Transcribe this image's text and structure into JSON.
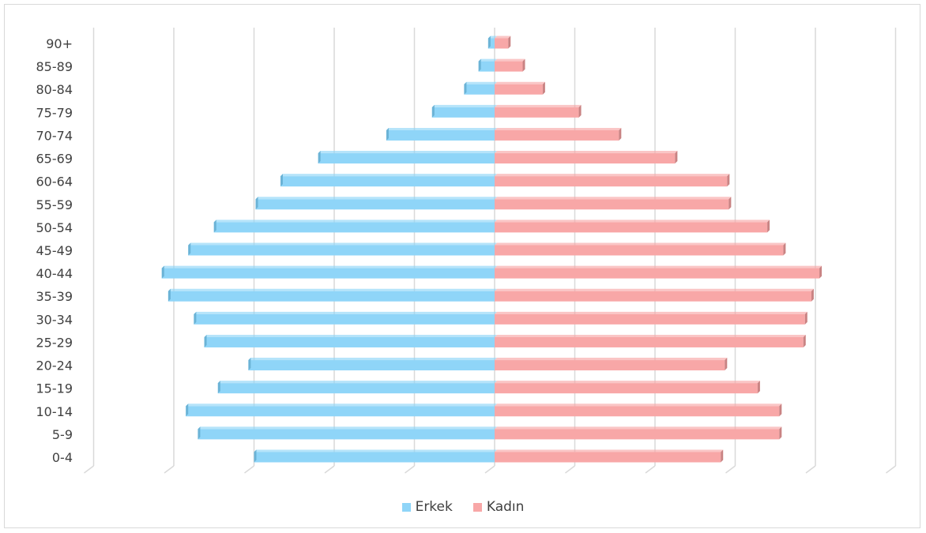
{
  "chart_data": {
    "type": "bar",
    "orientation": "horizontal",
    "subtype": "population-pyramid",
    "title": "",
    "xlabel": "",
    "ylabel": "",
    "categories": [
      "0-4",
      "5-9",
      "10-14",
      "15-19",
      "20-24",
      "25-29",
      "30-34",
      "35-39",
      "40-44",
      "45-49",
      "50-54",
      "55-59",
      "60-64",
      "65-69",
      "70-74",
      "75-79",
      "80-84",
      "85-89",
      "90+"
    ],
    "series": [
      {
        "name": "Erkek",
        "color": "#8fd5f8",
        "values": [
          -3.0,
          -3.7,
          -3.85,
          -3.45,
          -3.07,
          -3.62,
          -3.75,
          -4.07,
          -4.15,
          -3.82,
          -3.5,
          -2.98,
          -2.67,
          -2.2,
          -1.35,
          -0.78,
          -0.38,
          -0.2,
          -0.08
        ]
      },
      {
        "name": "Kadın",
        "color": "#f8a7a7",
        "values": [
          2.82,
          3.55,
          3.55,
          3.28,
          2.87,
          3.85,
          3.87,
          3.95,
          4.05,
          3.6,
          3.4,
          2.92,
          2.9,
          2.25,
          1.55,
          1.05,
          0.6,
          0.35,
          0.17
        ]
      }
    ],
    "xlim": [
      -5,
      5
    ],
    "grid": true,
    "legend_position": "bottom"
  }
}
